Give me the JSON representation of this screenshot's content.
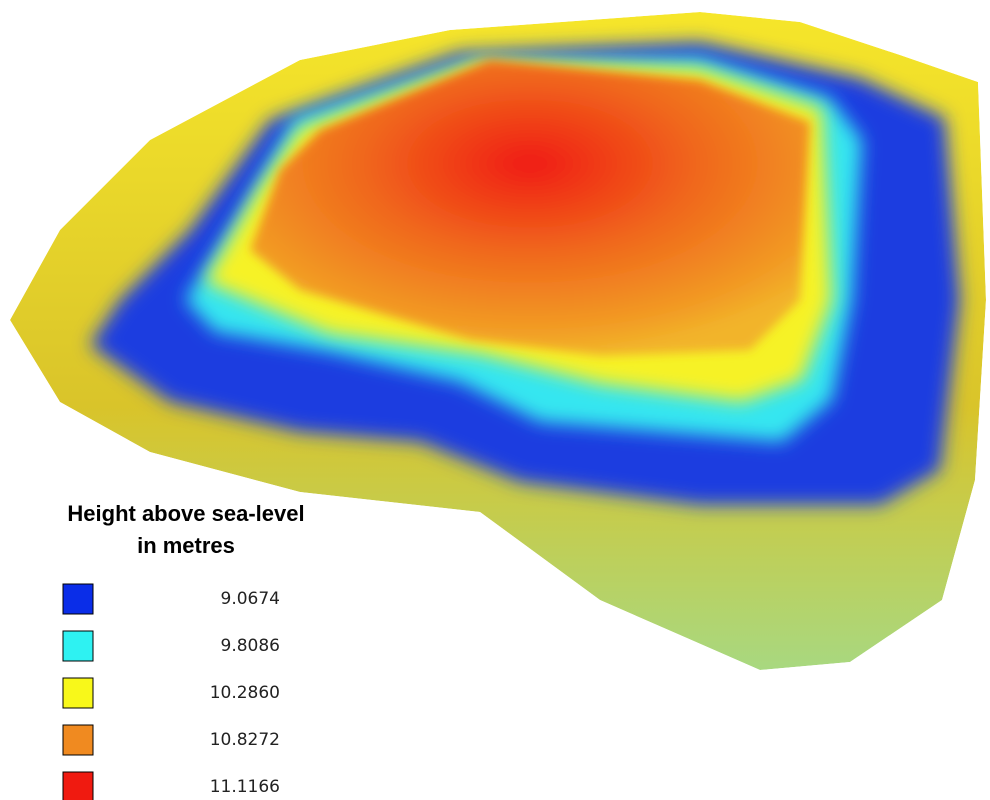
{
  "legend": {
    "title": [
      "Height above sea-level",
      "in metres"
    ],
    "items": [
      {
        "label": "9.0674",
        "color": "#0a2de8"
      },
      {
        "label": "9.8086",
        "color": "#2ef2f2"
      },
      {
        "label": "10.2860",
        "color": "#f8f81a"
      },
      {
        "label": "10.8272",
        "color": "#f08a20"
      },
      {
        "label": "11.1166",
        "color": "#f01a10"
      }
    ]
  }
}
